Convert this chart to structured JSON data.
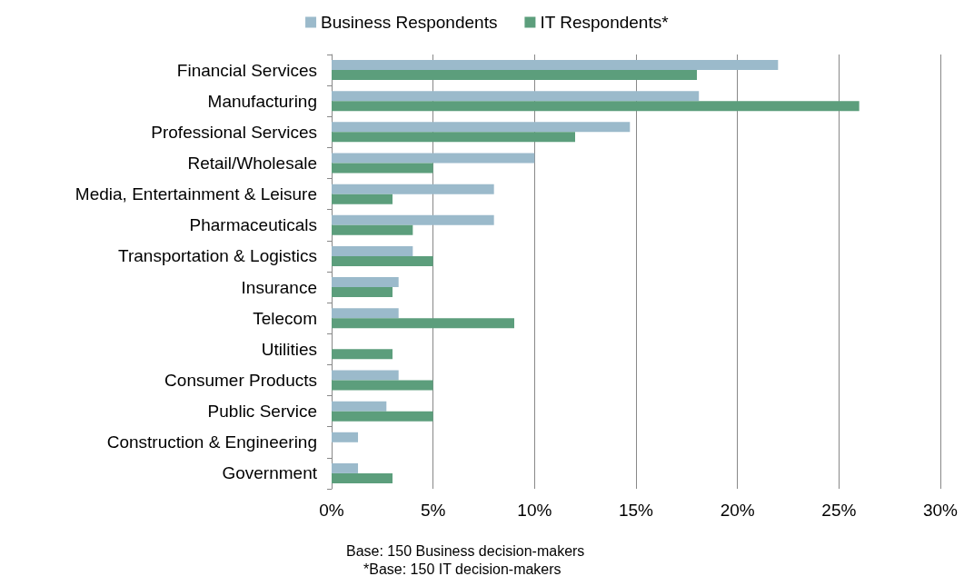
{
  "chart_data": {
    "type": "bar",
    "orientation": "horizontal",
    "categories": [
      "Financial Services",
      "Manufacturing",
      "Professional Services",
      "Retail/Wholesale",
      "Media, Entertainment & Leisure",
      "Pharmaceuticals",
      "Transportation & Logistics",
      "Insurance",
      "Telecom",
      "Utilities",
      "Consumer Products",
      "Public Service",
      "Construction & Engineering",
      "Government"
    ],
    "series": [
      {
        "name": "Business Respondents",
        "color": "#9bbacb",
        "values": [
          22,
          18.1,
          14.7,
          10,
          8,
          8,
          4,
          3.3,
          3.3,
          null,
          3.3,
          2.7,
          1.3,
          1.3
        ]
      },
      {
        "name": "IT Respondents*",
        "color": "#5c9e7c",
        "values": [
          18,
          26,
          12,
          5,
          3,
          4,
          5,
          3,
          9,
          3,
          5,
          5,
          null,
          3
        ]
      }
    ],
    "xlim": [
      0,
      30
    ],
    "xticks": [
      {
        "value": 0,
        "label": "0%"
      },
      {
        "value": 5,
        "label": "5%"
      },
      {
        "value": 10,
        "label": "10%"
      },
      {
        "value": 15,
        "label": "15%"
      },
      {
        "value": 20,
        "label": "20%"
      },
      {
        "value": 25,
        "label": "25%"
      },
      {
        "value": 30,
        "label": "30%"
      }
    ],
    "grid": "x",
    "legend": "top",
    "annotations": [
      "Base: 150 Business decision-makers",
      "*Base: 150 IT decision-makers"
    ]
  }
}
